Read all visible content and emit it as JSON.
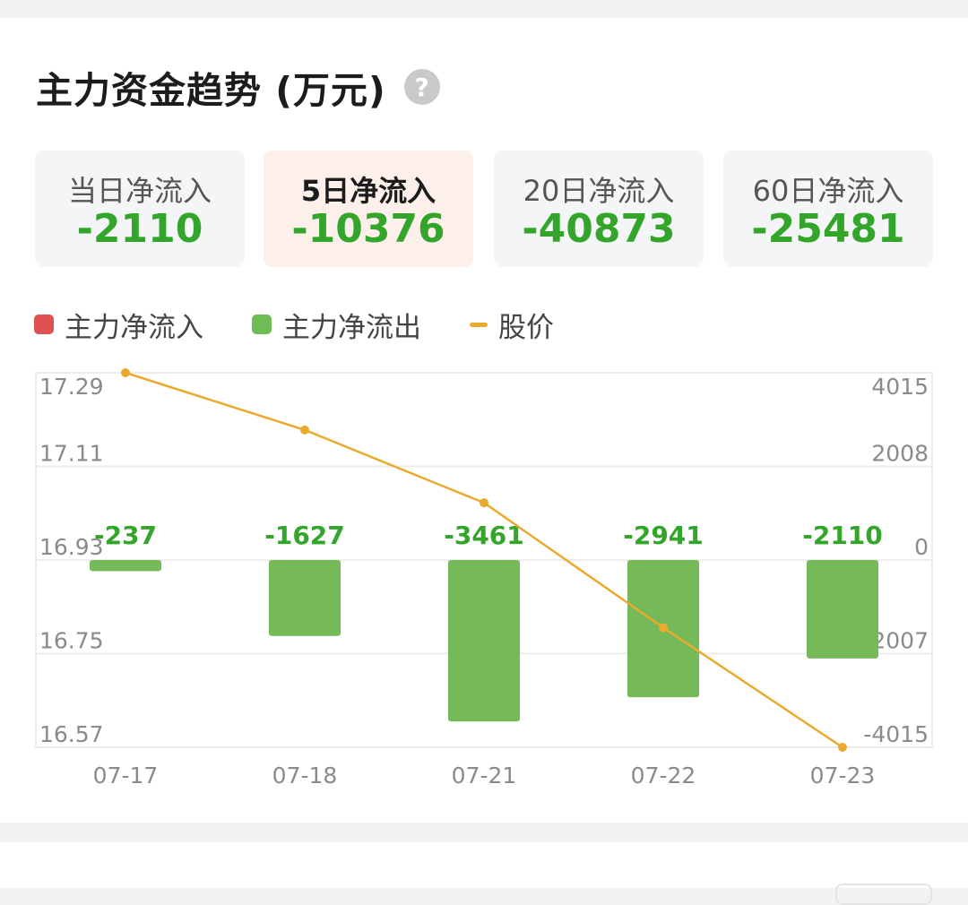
{
  "header": {
    "title": "主力资金趋势 (万元)",
    "help_icon": "question-icon"
  },
  "tabs": [
    {
      "label": "当日净流入",
      "value": "-2110",
      "active": false
    },
    {
      "label": "5日净流入",
      "value": "-10376",
      "active": true
    },
    {
      "label": "20日净流入",
      "value": "-40873",
      "active": false
    },
    {
      "label": "60日净流入",
      "value": "-25481",
      "active": false
    }
  ],
  "legend": [
    {
      "label": "主力净流入",
      "color": "#e05252",
      "shape": "square"
    },
    {
      "label": "主力净流出",
      "color": "#6fbb55",
      "shape": "square"
    },
    {
      "label": "股价",
      "color": "#eaaa2e",
      "shape": "line"
    }
  ],
  "colors": {
    "outflow": "#75b958",
    "outflow_label": "#34a52b",
    "price": "#eaaa2e",
    "inflow": "#e05252"
  },
  "chart_data": {
    "type": "bar",
    "categories": [
      "07-17",
      "07-18",
      "07-21",
      "07-22",
      "07-23"
    ],
    "series": [
      {
        "name": "主力净流出",
        "axis": "right",
        "values": [
          -237,
          -1627,
          -3461,
          -2941,
          -2110
        ]
      },
      {
        "name": "股价",
        "axis": "left",
        "type": "line",
        "values": [
          17.29,
          17.18,
          17.04,
          16.8,
          16.57
        ]
      }
    ],
    "bar_labels": [
      "-237",
      "-1627",
      "-3461",
      "-2941",
      "-2110"
    ],
    "left_axis": {
      "ticks": [
        "17.29",
        "17.11",
        "16.93",
        "16.75",
        "16.57"
      ],
      "range": [
        16.57,
        17.29
      ]
    },
    "right_axis": {
      "ticks": [
        "4015",
        "2008",
        "0",
        "-2007",
        "-4015"
      ],
      "range": [
        -4015,
        4015
      ]
    },
    "grid": true
  }
}
